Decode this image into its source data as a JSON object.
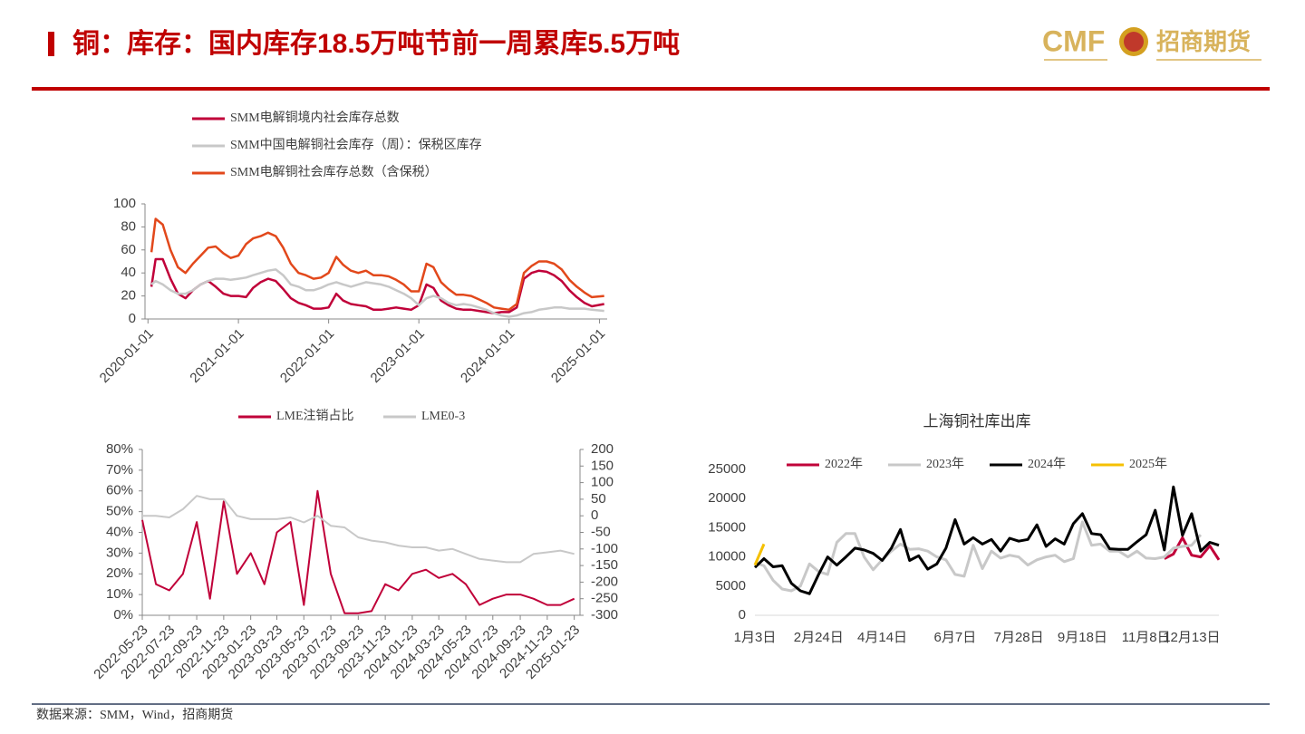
{
  "header": {
    "title": "铜：库存：国内库存18.5万吨节前一周累库5.5万吨",
    "logo": "CMF",
    "logo_cn": "招商期货"
  },
  "footer": {
    "source": "数据来源：SMM，Wind，招商期货"
  },
  "chart_data": [
    {
      "type": "line",
      "x": [
        "2020-01-15",
        "2020-02-01",
        "2020-03-01",
        "2020-04-01",
        "2020-05-01",
        "2020-06-01",
        "2020-07-01",
        "2020-08-01",
        "2020-09-01",
        "2020-10-01",
        "2020-11-01",
        "2020-12-01",
        "2021-01-01",
        "2021-02-01",
        "2021-03-01",
        "2021-04-01",
        "2021-05-01",
        "2021-06-01",
        "2021-07-01",
        "2021-08-01",
        "2021-09-01",
        "2021-10-01",
        "2021-11-01",
        "2021-12-01",
        "2022-01-01",
        "2022-02-01",
        "2022-03-01",
        "2022-04-01",
        "2022-05-01",
        "2022-06-01",
        "2022-07-01",
        "2022-08-01",
        "2022-09-01",
        "2022-10-01",
        "2022-11-01",
        "2022-12-01",
        "2023-01-01",
        "2023-02-01",
        "2023-03-01",
        "2023-04-01",
        "2023-05-01",
        "2023-06-01",
        "2023-07-01",
        "2023-08-01",
        "2023-09-01",
        "2023-10-01",
        "2023-11-01",
        "2023-12-01",
        "2024-01-01",
        "2024-02-01",
        "2024-03-01",
        "2024-04-01",
        "2024-05-01",
        "2024-06-01",
        "2024-07-01",
        "2024-08-01",
        "2024-09-01",
        "2024-10-01",
        "2024-11-01",
        "2024-12-01",
        "2025-01-20"
      ],
      "series": [
        {
          "name": "SMM电解铜境内社会库存总数",
          "color": "#c00039",
          "values": [
            28,
            52,
            52,
            35,
            22,
            18,
            25,
            30,
            33,
            28,
            22,
            20,
            20,
            19,
            27,
            32,
            35,
            33,
            26,
            18,
            14,
            12,
            9,
            9,
            10,
            22,
            16,
            13,
            12,
            11,
            8,
            8,
            9,
            10,
            9,
            8,
            12,
            30,
            27,
            16,
            12,
            9,
            8,
            8,
            7,
            6,
            5,
            6,
            6,
            10,
            35,
            40,
            42,
            41,
            38,
            33,
            25,
            19,
            14,
            11,
            13
          ]
        },
        {
          "name": "SMM中国电解铜社会库存（周）：保税区库存",
          "color": "#c8c8c8",
          "values": [
            30,
            33,
            30,
            25,
            22,
            22,
            25,
            30,
            33,
            35,
            35,
            34,
            35,
            36,
            38,
            40,
            42,
            43,
            38,
            30,
            28,
            25,
            25,
            27,
            30,
            32,
            30,
            28,
            30,
            32,
            31,
            30,
            28,
            25,
            22,
            18,
            12,
            18,
            20,
            18,
            14,
            12,
            13,
            12,
            10,
            8,
            5,
            3,
            2,
            3,
            5,
            6,
            8,
            9,
            10,
            10,
            9,
            9,
            9,
            8,
            7
          ]
        },
        {
          "name": "SMM电解铜社会库存总数（含保税）",
          "color": "#e2481b",
          "values": [
            58,
            87,
            82,
            60,
            45,
            40,
            48,
            55,
            62,
            63,
            57,
            53,
            55,
            65,
            70,
            72,
            75,
            72,
            62,
            48,
            40,
            38,
            35,
            36,
            40,
            54,
            47,
            42,
            40,
            42,
            38,
            38,
            37,
            34,
            30,
            24,
            24,
            48,
            45,
            32,
            26,
            21,
            21,
            20,
            17,
            14,
            10,
            9,
            8,
            13,
            40,
            46,
            50,
            50,
            48,
            43,
            34,
            28,
            23,
            19,
            20
          ]
        }
      ],
      "xlim": [
        "2019-12-20",
        "2025-02-01"
      ],
      "xticks": [
        "2020-01-01",
        "2021-01-01",
        "2022-01-01",
        "2023-01-01",
        "2024-01-01",
        "2025-01-01"
      ],
      "ylim": [
        0,
        100
      ],
      "yticks": [
        0,
        20,
        40,
        60,
        80,
        100
      ],
      "grid": false
    },
    {
      "type": "line",
      "x": [
        "2022-05-23",
        "2022-06-23",
        "2022-07-23",
        "2022-08-23",
        "2022-09-23",
        "2022-10-23",
        "2022-11-23",
        "2022-12-23",
        "2023-01-23",
        "2023-02-23",
        "2023-03-23",
        "2023-04-23",
        "2023-05-23",
        "2023-06-23",
        "2023-07-23",
        "2023-08-23",
        "2023-09-23",
        "2023-10-23",
        "2023-11-23",
        "2023-12-23",
        "2024-01-23",
        "2024-02-23",
        "2024-03-23",
        "2024-04-23",
        "2024-05-23",
        "2024-06-23",
        "2024-07-23",
        "2024-08-23",
        "2024-09-23",
        "2024-10-23",
        "2024-11-23",
        "2024-12-23",
        "2025-01-23"
      ],
      "series": [
        {
          "name": "LME注销占比",
          "color": "#c00039",
          "values": [
            46,
            15,
            12,
            20,
            45,
            8,
            55,
            20,
            30,
            15,
            40,
            45,
            5,
            60,
            20,
            1,
            1,
            2,
            15,
            12,
            20,
            22,
            18,
            20,
            15,
            5,
            8,
            10,
            10,
            8,
            5,
            5,
            8
          ]
        },
        {
          "name": "LME0-3",
          "color": "#c8c8c8",
          "axis": "y2",
          "values": [
            0,
            0,
            -5,
            20,
            60,
            50,
            50,
            0,
            -10,
            -10,
            -10,
            -5,
            -20,
            0,
            -30,
            -35,
            -65,
            -75,
            -80,
            -90,
            -95,
            -95,
            -105,
            -100,
            -115,
            -130,
            -135,
            -140,
            -140,
            -115,
            -110,
            -105,
            -115
          ]
        }
      ],
      "xlim": [
        "2022-05-23",
        "2025-02-05"
      ],
      "xticks": [
        "2022-05-23",
        "2022-07-23",
        "2022-09-23",
        "2022-11-23",
        "2023-01-23",
        "2023-03-23",
        "2023-05-23",
        "2023-07-23",
        "2023-09-23",
        "2023-11-23",
        "2024-01-23",
        "2024-03-23",
        "2024-05-23",
        "2024-07-23",
        "2024-09-23",
        "2024-11-23",
        "2025-01-23"
      ],
      "ylim": [
        0,
        80
      ],
      "yticks": [
        {
          "value": 0,
          "label": "0%"
        },
        {
          "value": 10,
          "label": "10%"
        },
        {
          "value": 20,
          "label": "20%"
        },
        {
          "value": 30,
          "label": "30%"
        },
        {
          "value": 40,
          "label": "40%"
        },
        {
          "value": 50,
          "label": "50%"
        },
        {
          "value": 60,
          "label": "60%"
        },
        {
          "value": 70,
          "label": "70%"
        },
        {
          "value": 80,
          "label": "80%"
        }
      ],
      "y2lim": [
        -300,
        200
      ],
      "y2ticks": [
        -300,
        -250,
        -200,
        -150,
        -100,
        -50,
        0,
        50,
        100,
        150,
        200
      ],
      "grid": false
    },
    {
      "type": "line",
      "title": "上海铜社库出库",
      "categories": [
        "1月3日",
        null,
        null,
        null,
        null,
        null,
        null,
        "2月24日",
        null,
        null,
        null,
        null,
        null,
        null,
        "4月14日",
        null,
        null,
        null,
        null,
        null,
        null,
        null,
        "6月7日",
        null,
        null,
        null,
        null,
        null,
        null,
        "7月28日",
        null,
        null,
        null,
        null,
        null,
        null,
        "9月18日",
        null,
        null,
        null,
        null,
        null,
        null,
        "11月8日",
        null,
        null,
        null,
        null,
        "12月13日",
        null,
        null,
        null
      ],
      "series": [
        {
          "name": "2022年",
          "color": "#c00039",
          "values": [
            null,
            null,
            null,
            null,
            null,
            null,
            null,
            null,
            null,
            null,
            null,
            null,
            null,
            null,
            null,
            null,
            null,
            null,
            null,
            null,
            null,
            null,
            null,
            null,
            null,
            null,
            null,
            null,
            null,
            null,
            null,
            null,
            null,
            null,
            null,
            null,
            null,
            null,
            null,
            null,
            null,
            null,
            null,
            null,
            null,
            9700,
            10500,
            13300,
            10300,
            10000,
            11900,
            9500
          ]
        },
        {
          "name": "2023年",
          "color": "#c8c8c8",
          "values": [
            9000,
            8500,
            6000,
            4500,
            4200,
            5000,
            8800,
            7500,
            7000,
            12500,
            14000,
            14000,
            10000,
            7800,
            9500,
            11000,
            12200,
            11300,
            11400,
            11000,
            10000,
            9500,
            7000,
            6700,
            12000,
            8000,
            11000,
            9800,
            10300,
            10000,
            8600,
            9500,
            10000,
            10300,
            9200,
            9700,
            16000,
            12000,
            12200,
            11000,
            11000,
            10000,
            11000,
            9800,
            9700,
            10000,
            11500,
            11800,
            12000,
            13800,
            null,
            null
          ]
        },
        {
          "name": "2024年",
          "color": "#000000",
          "values": [
            8200,
            9700,
            8300,
            8500,
            5500,
            4200,
            3700,
            7000,
            10000,
            8600,
            10000,
            11500,
            11200,
            10600,
            9400,
            11500,
            14700,
            9400,
            10200,
            7900,
            8800,
            11500,
            16400,
            12200,
            13300,
            12200,
            13000,
            11000,
            13200,
            12700,
            13000,
            15500,
            11800,
            13100,
            12200,
            15700,
            17400,
            14000,
            13800,
            11400,
            11300,
            11300,
            12600,
            13800,
            18000,
            11200,
            22000,
            13700,
            17400,
            11000,
            12500,
            12000
          ]
        },
        {
          "name": "2025年",
          "color": "#f5c000",
          "values": [
            8600,
            12200,
            null,
            null,
            null,
            null,
            null,
            null,
            null,
            null,
            null,
            null,
            null,
            null,
            null,
            null,
            null,
            null,
            null,
            null,
            null,
            null,
            null,
            null,
            null,
            null,
            null,
            null,
            null,
            null,
            null,
            null,
            null,
            null,
            null,
            null,
            null,
            null,
            null,
            null,
            null,
            null,
            null,
            null,
            null,
            null,
            null,
            null,
            null,
            null,
            null,
            null
          ]
        }
      ],
      "ylim": [
        0,
        25000
      ],
      "yticks": [
        0,
        5000,
        10000,
        15000,
        20000,
        25000
      ],
      "grid": false
    }
  ]
}
